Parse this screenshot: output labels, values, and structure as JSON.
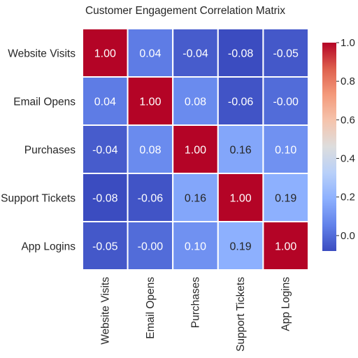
{
  "chart_data": {
    "type": "heatmap",
    "title": "Customer Engagement Correlation Matrix",
    "x_categories": [
      "Website Visits",
      "Email Opens",
      "Purchases",
      "Support Tickets",
      "App Logins"
    ],
    "y_categories": [
      "Website Visits",
      "Email Opens",
      "Purchases",
      "Support Tickets",
      "App Logins"
    ],
    "values": [
      [
        1.0,
        0.04,
        -0.04,
        -0.08,
        -0.05
      ],
      [
        0.04,
        1.0,
        0.08,
        -0.06,
        -0.0
      ],
      [
        -0.04,
        0.08,
        1.0,
        0.16,
        0.1
      ],
      [
        -0.08,
        -0.06,
        0.16,
        1.0,
        0.19
      ],
      [
        -0.05,
        -0.0,
        0.1,
        0.19,
        1.0
      ]
    ],
    "cell_labels": [
      [
        "1.00",
        "0.04",
        "-0.04",
        "-0.08",
        "-0.05"
      ],
      [
        "0.04",
        "1.00",
        "0.08",
        "-0.06",
        "-0.00"
      ],
      [
        "-0.04",
        "0.08",
        "1.00",
        "0.16",
        "0.10"
      ],
      [
        "-0.08",
        "-0.06",
        "0.16",
        "1.00",
        "0.19"
      ],
      [
        "-0.05",
        "-0.00",
        "0.10",
        "0.19",
        "1.00"
      ]
    ],
    "colormap": "coolwarm",
    "value_range": [
      -0.08,
      1.0
    ],
    "colorbar": {
      "placement": "right",
      "ticks": [
        "0.0",
        "0.2",
        "0.4",
        "0.6",
        "0.8",
        "1.0"
      ],
      "tick_values": [
        0.0,
        0.2,
        0.4,
        0.6,
        0.8,
        1.0
      ]
    },
    "grid": false,
    "cell_separator_color": "#ffffff",
    "text_color_dark": "#262626",
    "text_color_light": "#ffffff"
  }
}
